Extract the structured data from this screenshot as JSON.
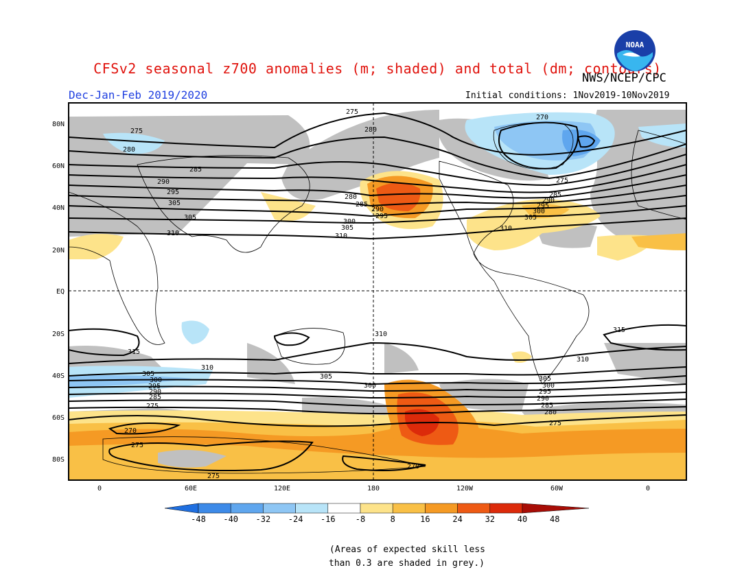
{
  "title": "CFSv2 seasonal z700 anomalies (m; shaded) and total (dm; contours)",
  "agency": "NWS/NCEP/CPC",
  "logo_text": "NOAA",
  "season": "Dec-Jan-Feb 2019/2020",
  "initial_conditions": "Initial conditions: 1Nov2019-10Nov2019",
  "lat_labels": [
    "80N",
    "60N",
    "40N",
    "20N",
    "EQ",
    "20S",
    "40S",
    "60S",
    "80S"
  ],
  "lon_labels": [
    "0",
    "60E",
    "120E",
    "180",
    "120W",
    "60W",
    "0"
  ],
  "contour_labels": [
    "275",
    "280",
    "285",
    "290",
    "295",
    "300",
    "305",
    "310",
    "315",
    "270"
  ],
  "colorbar": {
    "ticks": [
      "-48",
      "-40",
      "-32",
      "-24",
      "-16",
      "-8",
      "8",
      "16",
      "24",
      "32",
      "40",
      "48"
    ],
    "colors": [
      "#1f6fe0",
      "#3d8ae8",
      "#5fa6ee",
      "#8ec6f4",
      "#b8e4f8",
      "#ffffff",
      "#fde38a",
      "#f9c046",
      "#f59a24",
      "#ee5a14",
      "#dc2a0a",
      "#a80d06"
    ]
  },
  "grey_note_line1": "(Areas of expected skill less",
  "grey_note_line2": "than 0.3 are shaded in grey.)",
  "colors": {
    "title": "#e0120c",
    "season": "#2040e0",
    "grey_low_skill": "#c0c0c0"
  }
}
